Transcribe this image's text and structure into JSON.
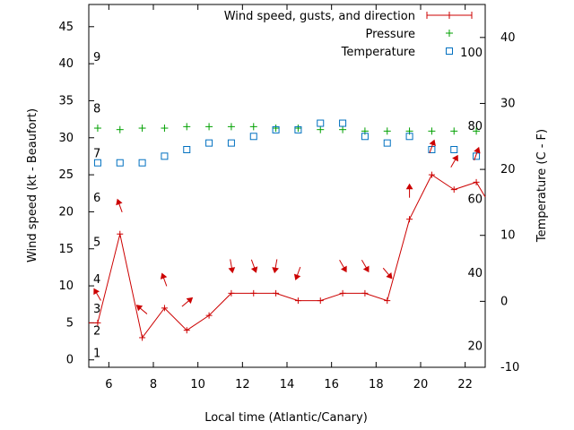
{
  "chart_data": {
    "type": "line",
    "xlabel": "Local time (Atlantic/Canary)",
    "ylabel_left": "Wind speed (kt - Beaufort)",
    "ylabel_right": "Temperature (C - F)",
    "xlim": [
      5.1,
      22.9
    ],
    "ylim_left": [
      -1,
      48
    ],
    "ylim_right": [
      -10,
      45
    ],
    "x_ticks": [
      6,
      8,
      10,
      12,
      14,
      16,
      18,
      20,
      22
    ],
    "y_left_ticks": [
      0,
      5,
      10,
      15,
      20,
      25,
      30,
      35,
      40,
      45
    ],
    "y_right_ticks": [
      -10,
      0,
      10,
      20,
      30,
      40
    ],
    "beaufort_labels": [
      {
        "label": "1",
        "kt": 1
      },
      {
        "label": "2",
        "kt": 4
      },
      {
        "label": "3",
        "kt": 7
      },
      {
        "label": "4",
        "kt": 11
      },
      {
        "label": "5",
        "kt": 16
      },
      {
        "label": "6",
        "kt": 22
      },
      {
        "label": "7",
        "kt": 28
      },
      {
        "label": "8",
        "kt": 34
      },
      {
        "label": "9",
        "kt": 41
      }
    ],
    "fahrenheit_labels": [
      {
        "label": "20",
        "c": -6.7
      },
      {
        "label": "40",
        "c": 4.4
      },
      {
        "label": "60",
        "c": 15.6
      },
      {
        "label": "80",
        "c": 26.7
      },
      {
        "label": "100",
        "c": 37.8
      }
    ],
    "legend_position": "top-right",
    "series": [
      {
        "name": "Wind speed, gusts, and direction",
        "color": "#cc0000",
        "x": [
          5.1,
          5.5,
          6.5,
          7.5,
          8.5,
          9.5,
          10.5,
          11.5,
          12.5,
          13.5,
          14.5,
          15.5,
          16.5,
          17.5,
          18.5,
          19.5,
          20.5,
          21.5,
          22.5,
          22.9
        ],
        "y": [
          5,
          5,
          17,
          3,
          7,
          4,
          6,
          9,
          9,
          9,
          8,
          8,
          9,
          9,
          8,
          19,
          25,
          23,
          24,
          22
        ],
        "direction_x": [
          5.5,
          6.5,
          7.5,
          8.5,
          9.5,
          11.5,
          12.5,
          13.5,
          14.5,
          16.5,
          17.5,
          18.5,
          19.5,
          20.5,
          21.5,
          22.5
        ],
        "direction_deg": [
          150,
          160,
          130,
          160,
          230,
          350,
          340,
          10,
          20,
          330,
          330,
          320,
          180,
          200,
          210,
          200
        ]
      },
      {
        "name": "Pressure",
        "color": "#00a000",
        "marker": "+",
        "x": [
          5.5,
          6.5,
          7.5,
          8.5,
          9.5,
          10.5,
          11.5,
          12.5,
          13.5,
          14.5,
          15.5,
          16.5,
          17.5,
          18.5,
          19.5,
          20.5,
          21.5,
          22.5
        ],
        "y": [
          31.3,
          31.1,
          31.3,
          31.3,
          31.5,
          31.5,
          31.5,
          31.5,
          31.3,
          31.3,
          31.1,
          31.1,
          30.9,
          30.9,
          30.9,
          30.9,
          30.9,
          30.9
        ]
      },
      {
        "name": "Temperature",
        "color": "#0070c0",
        "marker": "square",
        "x": [
          5.5,
          6.5,
          7.5,
          8.5,
          9.5,
          10.5,
          11.5,
          12.5,
          13.5,
          14.5,
          15.5,
          16.5,
          17.5,
          18.5,
          19.5,
          20.5,
          21.5,
          22.5
        ],
        "y": [
          21,
          21,
          21,
          22,
          23,
          24,
          24,
          25,
          26,
          26,
          27,
          27,
          25,
          24,
          25,
          23,
          23,
          22
        ]
      }
    ]
  }
}
